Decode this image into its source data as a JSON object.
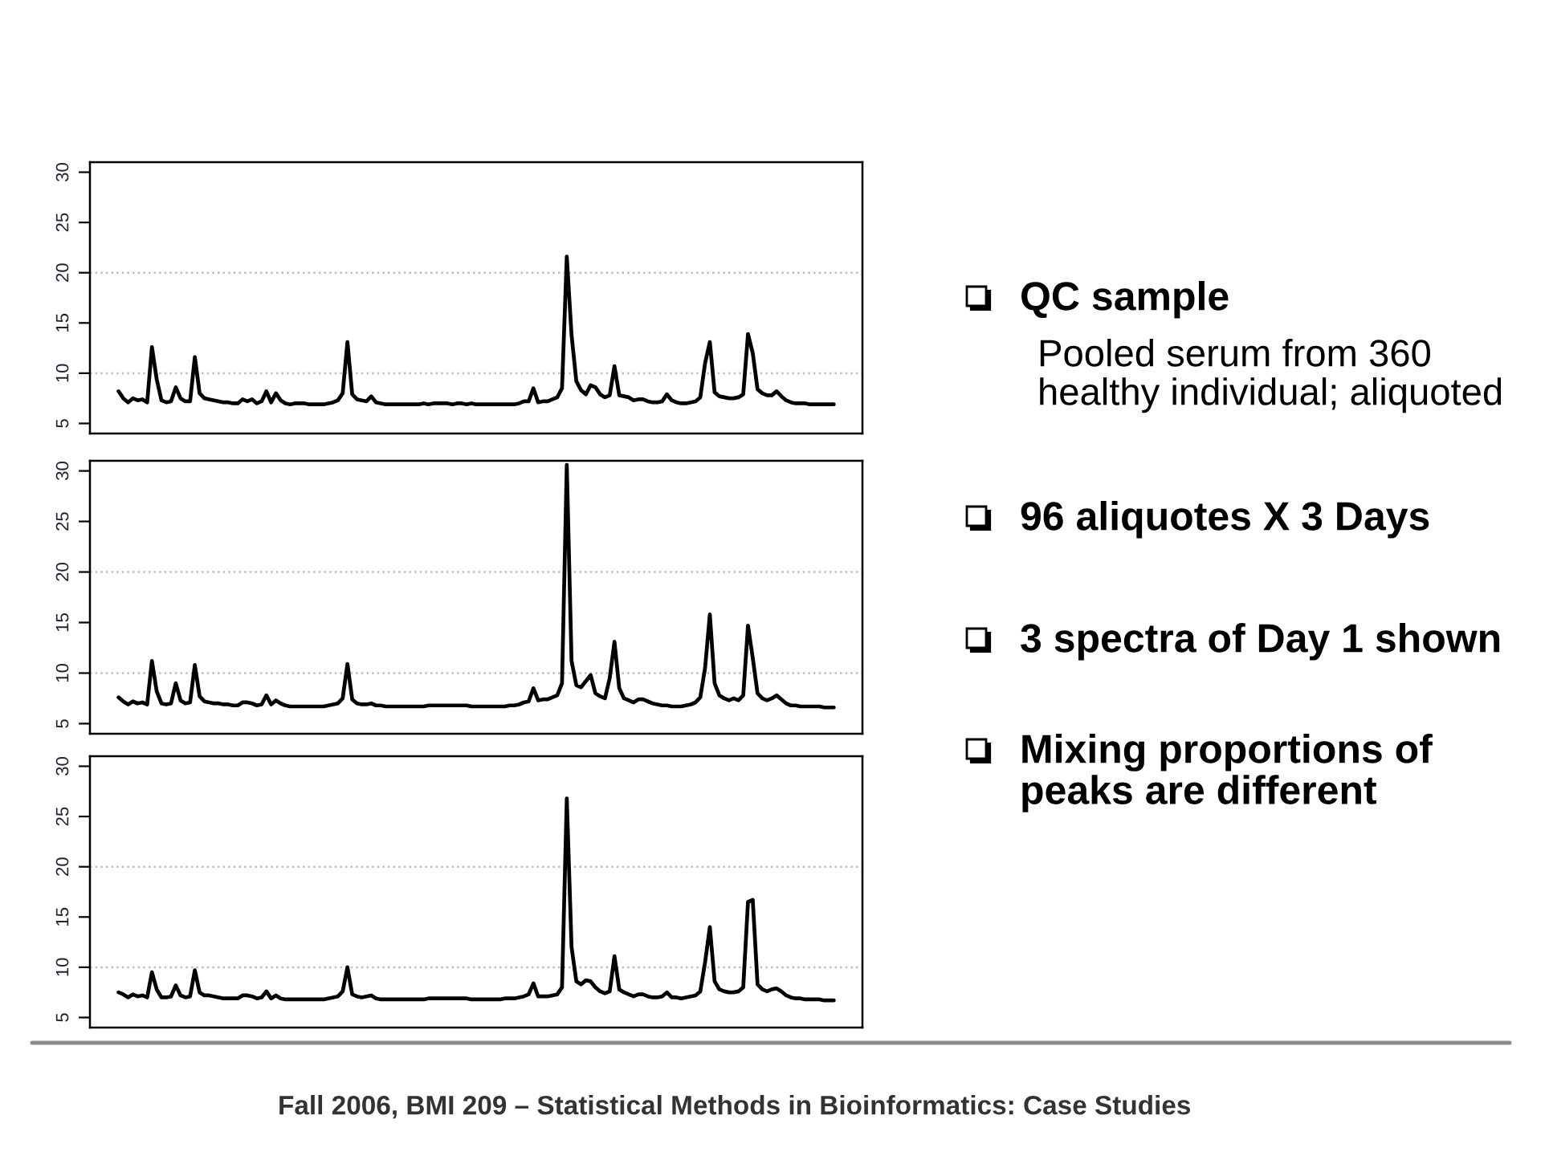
{
  "chart_data": [
    {
      "type": "line",
      "color": "#000000",
      "ylim": [
        4,
        31
      ],
      "yticks": [
        5,
        10,
        15,
        20,
        25,
        30
      ],
      "tick_labels": "y",
      "ref_lines": [
        {
          "axis": "y",
          "value": 10,
          "color": "#bebebe",
          "line_style": "dotted"
        },
        {
          "axis": "y",
          "value": 20,
          "color": "#bebebe",
          "line_style": "dotted"
        }
      ],
      "categories": [
        null,
        null,
        null,
        null,
        null,
        null,
        null,
        null,
        null,
        null,
        null,
        null,
        null,
        null,
        null,
        null,
        null,
        null,
        null,
        null,
        null,
        null,
        null,
        null,
        null,
        null,
        null,
        null,
        null,
        null,
        null,
        null,
        null,
        null,
        null,
        null,
        null,
        null,
        null,
        null,
        null,
        null,
        null,
        null,
        null,
        null,
        null,
        null,
        null,
        null,
        null,
        null,
        null,
        null,
        null,
        null,
        null,
        null,
        null,
        null,
        null,
        null,
        null,
        null,
        null,
        null,
        null,
        null,
        null,
        null,
        null,
        null,
        null,
        null,
        null,
        null,
        null,
        null,
        null,
        null,
        null,
        null,
        null,
        null,
        null,
        null,
        null,
        null,
        null,
        null,
        null,
        null,
        null,
        null,
        null,
        null,
        null,
        null,
        null,
        null,
        null,
        null,
        null,
        null,
        null,
        null,
        null,
        null,
        null,
        null,
        null,
        null,
        null,
        null,
        null,
        null,
        null,
        null,
        null,
        null,
        null,
        null,
        null,
        null,
        null,
        null,
        null,
        null,
        null,
        null,
        null,
        null,
        null,
        null,
        null,
        null,
        null,
        null,
        null,
        null,
        null,
        null,
        null,
        null,
        null,
        null,
        null,
        null,
        null,
        null,
        null
      ],
      "values": [
        8.2,
        7.5,
        7.1,
        7.5,
        7.3,
        7.4,
        7.1,
        12.6,
        9.4,
        7.3,
        7.1,
        7.2,
        8.6,
        7.5,
        7.2,
        7.2,
        11.6,
        8.0,
        7.5,
        7.4,
        7.3,
        7.2,
        7.1,
        7.1,
        7.0,
        7.0,
        7.4,
        7.2,
        7.4,
        7.0,
        7.2,
        8.2,
        7.1,
        8.0,
        7.3,
        7.0,
        6.9,
        7.0,
        7.0,
        7.0,
        6.9,
        6.9,
        6.9,
        6.9,
        7.0,
        7.1,
        7.3,
        8.0,
        13.1,
        7.9,
        7.4,
        7.3,
        7.2,
        7.7,
        7.1,
        7.0,
        6.9,
        6.9,
        6.9,
        6.9,
        6.9,
        6.9,
        6.9,
        6.9,
        7.0,
        6.9,
        7.0,
        7.0,
        7.0,
        7.0,
        6.9,
        7.0,
        7.0,
        6.9,
        7.0,
        6.9,
        6.9,
        6.9,
        6.9,
        6.9,
        6.9,
        6.9,
        6.9,
        6.9,
        7.0,
        7.2,
        7.2,
        8.5,
        7.1,
        7.2,
        7.2,
        7.4,
        7.6,
        8.5,
        21.6,
        13.8,
        9.2,
        8.3,
        7.9,
        8.8,
        8.6,
        7.9,
        7.6,
        7.8,
        10.7,
        7.8,
        7.7,
        7.6,
        7.3,
        7.4,
        7.4,
        7.2,
        7.1,
        7.1,
        7.2,
        7.9,
        7.3,
        7.1,
        7.0,
        7.0,
        7.1,
        7.2,
        7.6,
        11.0,
        13.1,
        8.1,
        7.7,
        7.6,
        7.5,
        7.5,
        7.6,
        7.9,
        13.9,
        12.0,
        8.4,
        8.0,
        7.8,
        7.8,
        8.2,
        7.7,
        7.3,
        7.1,
        7.0,
        7.0,
        7.0,
        6.9,
        6.9,
        6.9,
        6.9,
        6.9,
        6.9
      ]
    },
    {
      "type": "line",
      "color": "#000000",
      "ylim": [
        4,
        31
      ],
      "yticks": [
        5,
        10,
        15,
        20,
        25,
        30
      ],
      "tick_labels": "y",
      "ref_lines": [
        {
          "axis": "y",
          "value": 10,
          "color": "#bebebe",
          "line_style": "dotted"
        },
        {
          "axis": "y",
          "value": 20,
          "color": "#bebebe",
          "line_style": "dotted"
        }
      ],
      "categories": [
        null,
        null,
        null,
        null,
        null,
        null,
        null,
        null,
        null,
        null,
        null,
        null,
        null,
        null,
        null,
        null,
        null,
        null,
        null,
        null,
        null,
        null,
        null,
        null,
        null,
        null,
        null,
        null,
        null,
        null,
        null,
        null,
        null,
        null,
        null,
        null,
        null,
        null,
        null,
        null,
        null,
        null,
        null,
        null,
        null,
        null,
        null,
        null,
        null,
        null,
        null,
        null,
        null,
        null,
        null,
        null,
        null,
        null,
        null,
        null,
        null,
        null,
        null,
        null,
        null,
        null,
        null,
        null,
        null,
        null,
        null,
        null,
        null,
        null,
        null,
        null,
        null,
        null,
        null,
        null,
        null,
        null,
        null,
        null,
        null,
        null,
        null,
        null,
        null,
        null,
        null,
        null,
        null,
        null,
        null,
        null,
        null,
        null,
        null,
        null,
        null,
        null,
        null,
        null,
        null,
        null,
        null,
        null,
        null,
        null,
        null,
        null,
        null,
        null,
        null,
        null,
        null,
        null,
        null,
        null,
        null,
        null,
        null,
        null,
        null,
        null,
        null,
        null,
        null,
        null,
        null,
        null,
        null,
        null,
        null,
        null,
        null,
        null,
        null,
        null,
        null,
        null,
        null,
        null,
        null,
        null,
        null,
        null,
        null,
        null,
        null
      ],
      "values": [
        7.6,
        7.2,
        6.9,
        7.2,
        7.0,
        7.1,
        6.9,
        11.2,
        8.2,
        7.0,
        6.9,
        7.0,
        9.0,
        7.3,
        7.0,
        7.1,
        10.8,
        7.7,
        7.2,
        7.1,
        7.0,
        7.0,
        6.9,
        6.9,
        6.8,
        6.8,
        7.1,
        7.1,
        7.0,
        6.8,
        6.9,
        7.8,
        6.9,
        7.3,
        7.0,
        6.8,
        6.7,
        6.7,
        6.7,
        6.7,
        6.7,
        6.7,
        6.7,
        6.7,
        6.8,
        6.9,
        7.0,
        7.5,
        10.9,
        7.4,
        7.0,
        6.9,
        6.9,
        7.0,
        6.8,
        6.8,
        6.7,
        6.7,
        6.7,
        6.7,
        6.7,
        6.7,
        6.7,
        6.7,
        6.7,
        6.8,
        6.8,
        6.8,
        6.8,
        6.8,
        6.8,
        6.8,
        6.8,
        6.8,
        6.7,
        6.7,
        6.7,
        6.7,
        6.7,
        6.7,
        6.7,
        6.7,
        6.8,
        6.8,
        6.9,
        7.1,
        7.2,
        8.5,
        7.3,
        7.4,
        7.4,
        7.6,
        7.8,
        9.0,
        30.6,
        11.2,
        8.8,
        8.6,
        9.2,
        9.8,
        8.0,
        7.7,
        7.5,
        9.5,
        13.1,
        8.5,
        7.5,
        7.3,
        7.1,
        7.4,
        7.4,
        7.2,
        7.0,
        6.9,
        6.8,
        6.8,
        6.7,
        6.7,
        6.7,
        6.8,
        6.9,
        7.1,
        7.6,
        10.5,
        15.8,
        9.0,
        7.8,
        7.5,
        7.3,
        7.5,
        7.3,
        7.8,
        14.7,
        11.5,
        8.0,
        7.5,
        7.3,
        7.5,
        7.8,
        7.4,
        7.0,
        6.8,
        6.8,
        6.7,
        6.7,
        6.7,
        6.7,
        6.7,
        6.6,
        6.6,
        6.6
      ]
    },
    {
      "type": "line",
      "color": "#000000",
      "ylim": [
        4,
        31
      ],
      "yticks": [
        5,
        10,
        15,
        20,
        25,
        30
      ],
      "tick_labels": "y",
      "ref_lines": [
        {
          "axis": "y",
          "value": 10,
          "color": "#bebebe",
          "line_style": "dotted"
        },
        {
          "axis": "y",
          "value": 20,
          "color": "#bebebe",
          "line_style": "dotted"
        }
      ],
      "categories": [
        null,
        null,
        null,
        null,
        null,
        null,
        null,
        null,
        null,
        null,
        null,
        null,
        null,
        null,
        null,
        null,
        null,
        null,
        null,
        null,
        null,
        null,
        null,
        null,
        null,
        null,
        null,
        null,
        null,
        null,
        null,
        null,
        null,
        null,
        null,
        null,
        null,
        null,
        null,
        null,
        null,
        null,
        null,
        null,
        null,
        null,
        null,
        null,
        null,
        null,
        null,
        null,
        null,
        null,
        null,
        null,
        null,
        null,
        null,
        null,
        null,
        null,
        null,
        null,
        null,
        null,
        null,
        null,
        null,
        null,
        null,
        null,
        null,
        null,
        null,
        null,
        null,
        null,
        null,
        null,
        null,
        null,
        null,
        null,
        null,
        null,
        null,
        null,
        null,
        null,
        null,
        null,
        null,
        null,
        null,
        null,
        null,
        null,
        null,
        null,
        null,
        null,
        null,
        null,
        null,
        null,
        null,
        null,
        null,
        null,
        null,
        null,
        null,
        null,
        null,
        null,
        null,
        null,
        null,
        null,
        null,
        null,
        null,
        null,
        null,
        null,
        null,
        null,
        null,
        null,
        null,
        null,
        null,
        null,
        null,
        null,
        null,
        null,
        null,
        null,
        null,
        null,
        null,
        null,
        null,
        null,
        null,
        null,
        null,
        null,
        null
      ],
      "values": [
        7.5,
        7.3,
        7.0,
        7.3,
        7.1,
        7.2,
        7.0,
        9.5,
        7.8,
        7.0,
        7.0,
        7.1,
        8.2,
        7.2,
        7.0,
        7.1,
        9.7,
        7.5,
        7.2,
        7.2,
        7.1,
        7.0,
        6.9,
        6.9,
        6.9,
        6.9,
        7.2,
        7.2,
        7.1,
        6.9,
        7.0,
        7.6,
        6.9,
        7.2,
        6.9,
        6.8,
        6.8,
        6.8,
        6.8,
        6.8,
        6.8,
        6.8,
        6.8,
        6.8,
        6.9,
        7.0,
        7.1,
        7.6,
        10.0,
        7.3,
        7.1,
        7.0,
        7.1,
        7.2,
        6.9,
        6.8,
        6.8,
        6.8,
        6.8,
        6.8,
        6.8,
        6.8,
        6.8,
        6.8,
        6.8,
        6.9,
        6.9,
        6.9,
        6.9,
        6.9,
        6.9,
        6.9,
        6.9,
        6.9,
        6.8,
        6.8,
        6.8,
        6.8,
        6.8,
        6.8,
        6.8,
        6.9,
        6.9,
        6.9,
        7.0,
        7.1,
        7.3,
        8.4,
        7.1,
        7.1,
        7.1,
        7.2,
        7.3,
        8.0,
        26.8,
        12.0,
        8.6,
        8.3,
        8.7,
        8.6,
        8.0,
        7.6,
        7.4,
        7.6,
        11.1,
        7.8,
        7.5,
        7.3,
        7.1,
        7.3,
        7.3,
        7.1,
        7.0,
        7.0,
        7.1,
        7.5,
        7.0,
        7.0,
        6.9,
        7.0,
        7.1,
        7.2,
        7.6,
        10.5,
        14.0,
        8.6,
        7.8,
        7.6,
        7.5,
        7.5,
        7.6,
        8.0,
        16.5,
        16.7,
        8.3,
        7.8,
        7.6,
        7.8,
        7.9,
        7.6,
        7.2,
        7.0,
        6.9,
        6.9,
        6.8,
        6.8,
        6.8,
        6.8,
        6.7,
        6.7,
        6.7
      ]
    },
    {
      "type": "other",
      "annotations": [
        "QC sample",
        "Pooled serum from 360\nhealthy individual; aliquoted",
        "96 aliquotes X 3 Days",
        "3 spectra of Day 1 shown",
        "Mixing proportions of\npeaks are different",
        "Fall 2006, BMI 209 – Statistical Methods in Bioinformatics: Case Studies"
      ]
    }
  ]
}
